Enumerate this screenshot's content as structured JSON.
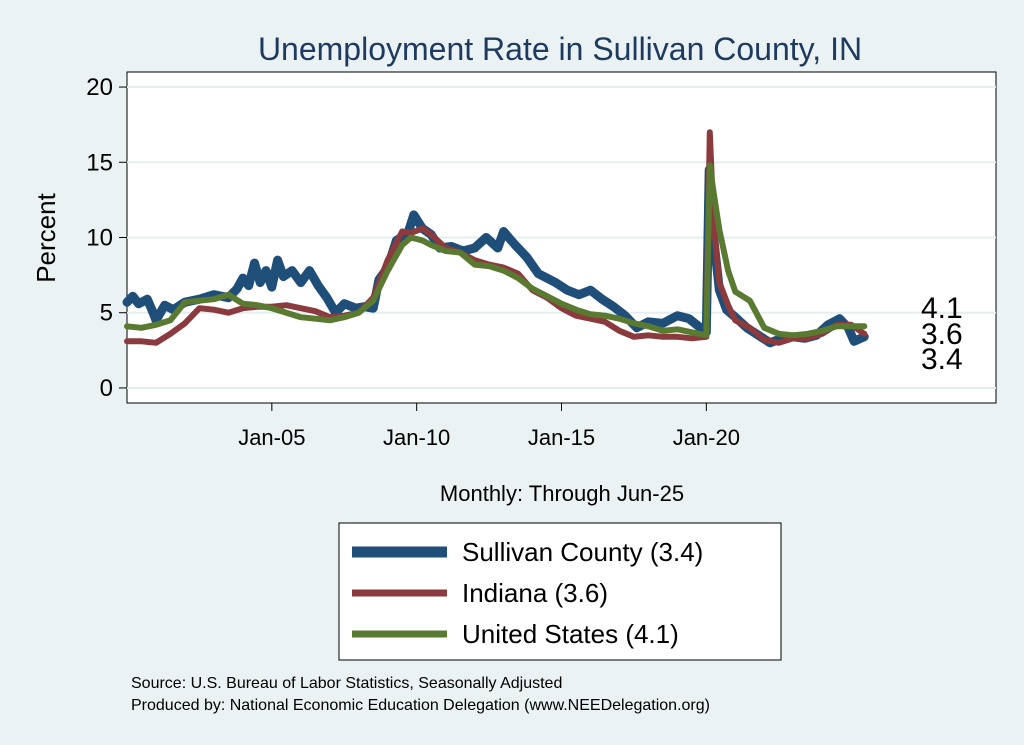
{
  "chart_data": {
    "type": "line",
    "title": "Unemployment Rate in Sullivan  County, IN",
    "xlabel": "Monthly: Through Jun-25",
    "ylabel": "Percent",
    "x_range": [
      2000.0,
      2030.0
    ],
    "ylim": [
      -1,
      21
    ],
    "y_ticks": [
      0,
      5,
      10,
      15,
      20
    ],
    "x_ticks": [
      {
        "label": "Jan-05",
        "value": 2005.0
      },
      {
        "label": "Jan-10",
        "value": 2010.0
      },
      {
        "label": "Jan-15",
        "value": 2015.0
      },
      {
        "label": "Jan-20",
        "value": 2020.0
      }
    ],
    "grid": true,
    "legend_position": "bottom",
    "series": [
      {
        "name": "Sullivan  County (3.4)",
        "color": "#1f4e79",
        "end_label": "3.4",
        "points": [
          [
            2000.0,
            5.7
          ],
          [
            2000.2,
            6.1
          ],
          [
            2000.4,
            5.6
          ],
          [
            2000.7,
            5.9
          ],
          [
            2000.9,
            5.0
          ],
          [
            2001.0,
            4.5
          ],
          [
            2001.3,
            5.5
          ],
          [
            2001.6,
            5.2
          ],
          [
            2002.0,
            5.7
          ],
          [
            2002.5,
            5.9
          ],
          [
            2003.0,
            6.2
          ],
          [
            2003.5,
            6.0
          ],
          [
            2003.8,
            6.6
          ],
          [
            2004.0,
            7.3
          ],
          [
            2004.2,
            6.8
          ],
          [
            2004.4,
            8.3
          ],
          [
            2004.6,
            7.0
          ],
          [
            2004.8,
            7.8
          ],
          [
            2005.0,
            6.7
          ],
          [
            2005.2,
            8.5
          ],
          [
            2005.4,
            7.4
          ],
          [
            2005.7,
            7.8
          ],
          [
            2006.0,
            7.0
          ],
          [
            2006.3,
            7.8
          ],
          [
            2006.6,
            6.8
          ],
          [
            2006.9,
            6.0
          ],
          [
            2007.2,
            5.0
          ],
          [
            2007.5,
            5.6
          ],
          [
            2007.9,
            5.3
          ],
          [
            2008.2,
            5.4
          ],
          [
            2008.5,
            5.3
          ],
          [
            2008.7,
            7.2
          ],
          [
            2009.0,
            8.0
          ],
          [
            2009.3,
            9.8
          ],
          [
            2009.7,
            10.3
          ],
          [
            2009.9,
            11.5
          ],
          [
            2010.2,
            10.6
          ],
          [
            2010.5,
            10.2
          ],
          [
            2010.8,
            9.3
          ],
          [
            2011.2,
            9.4
          ],
          [
            2011.6,
            9.1
          ],
          [
            2012.0,
            9.3
          ],
          [
            2012.4,
            10.0
          ],
          [
            2012.8,
            9.3
          ],
          [
            2013.0,
            10.4
          ],
          [
            2013.4,
            9.5
          ],
          [
            2013.8,
            8.7
          ],
          [
            2014.2,
            7.6
          ],
          [
            2014.8,
            7.0
          ],
          [
            2015.2,
            6.5
          ],
          [
            2015.6,
            6.2
          ],
          [
            2016.0,
            6.5
          ],
          [
            2016.4,
            5.9
          ],
          [
            2016.8,
            5.4
          ],
          [
            2017.2,
            4.8
          ],
          [
            2017.6,
            4.0
          ],
          [
            2018.0,
            4.4
          ],
          [
            2018.5,
            4.3
          ],
          [
            2019.0,
            4.8
          ],
          [
            2019.4,
            4.6
          ],
          [
            2019.8,
            4.0
          ],
          [
            2020.0,
            3.7
          ],
          [
            2020.1,
            14.5
          ],
          [
            2020.25,
            10.0
          ],
          [
            2020.45,
            6.5
          ],
          [
            2020.7,
            5.2
          ],
          [
            2021.0,
            4.7
          ],
          [
            2021.4,
            4.0
          ],
          [
            2021.8,
            3.5
          ],
          [
            2022.2,
            3.0
          ],
          [
            2022.6,
            3.3
          ],
          [
            2023.0,
            3.4
          ],
          [
            2023.4,
            3.3
          ],
          [
            2023.8,
            3.5
          ],
          [
            2024.2,
            4.2
          ],
          [
            2024.6,
            4.6
          ],
          [
            2024.9,
            4.0
          ],
          [
            2025.1,
            3.1
          ],
          [
            2025.45,
            3.4
          ]
        ]
      },
      {
        "name": "Indiana (3.6)",
        "color": "#8b3a3e",
        "end_label": "3.6",
        "points": [
          [
            2000.0,
            3.1
          ],
          [
            2000.5,
            3.1
          ],
          [
            2001.0,
            3.0
          ],
          [
            2001.5,
            3.6
          ],
          [
            2002.0,
            4.3
          ],
          [
            2002.5,
            5.3
          ],
          [
            2003.0,
            5.2
          ],
          [
            2003.5,
            5.0
          ],
          [
            2004.0,
            5.3
          ],
          [
            2004.5,
            5.4
          ],
          [
            2005.0,
            5.4
          ],
          [
            2005.5,
            5.5
          ],
          [
            2006.0,
            5.3
          ],
          [
            2006.5,
            5.1
          ],
          [
            2007.0,
            4.7
          ],
          [
            2007.5,
            4.8
          ],
          [
            2008.0,
            5.0
          ],
          [
            2008.5,
            6.0
          ],
          [
            2009.0,
            8.5
          ],
          [
            2009.5,
            10.4
          ],
          [
            2009.8,
            10.3
          ],
          [
            2010.2,
            10.6
          ],
          [
            2010.5,
            10.2
          ],
          [
            2011.0,
            9.3
          ],
          [
            2011.5,
            9.0
          ],
          [
            2012.0,
            8.5
          ],
          [
            2012.5,
            8.2
          ],
          [
            2013.0,
            8.0
          ],
          [
            2013.5,
            7.6
          ],
          [
            2014.0,
            6.5
          ],
          [
            2014.5,
            6.0
          ],
          [
            2015.0,
            5.3
          ],
          [
            2015.5,
            4.8
          ],
          [
            2016.0,
            4.6
          ],
          [
            2016.5,
            4.4
          ],
          [
            2017.0,
            3.8
          ],
          [
            2017.5,
            3.4
          ],
          [
            2018.0,
            3.5
          ],
          [
            2018.5,
            3.4
          ],
          [
            2019.0,
            3.4
          ],
          [
            2019.5,
            3.3
          ],
          [
            2020.0,
            3.4
          ],
          [
            2020.12,
            17.0
          ],
          [
            2020.25,
            11.0
          ],
          [
            2020.45,
            7.0
          ],
          [
            2020.75,
            5.5
          ],
          [
            2021.0,
            4.5
          ],
          [
            2021.5,
            4.0
          ],
          [
            2022.0,
            3.2
          ],
          [
            2022.5,
            3.0
          ],
          [
            2023.0,
            3.3
          ],
          [
            2023.5,
            3.3
          ],
          [
            2024.0,
            3.6
          ],
          [
            2024.5,
            4.2
          ],
          [
            2025.0,
            4.2
          ],
          [
            2025.45,
            3.6
          ]
        ]
      },
      {
        "name": "United States (4.1)",
        "color": "#5a7a32",
        "end_label": "4.1",
        "points": [
          [
            2000.0,
            4.1
          ],
          [
            2000.5,
            4.0
          ],
          [
            2001.0,
            4.2
          ],
          [
            2001.5,
            4.5
          ],
          [
            2002.0,
            5.7
          ],
          [
            2002.5,
            5.8
          ],
          [
            2003.0,
            5.9
          ],
          [
            2003.5,
            6.2
          ],
          [
            2004.0,
            5.6
          ],
          [
            2004.5,
            5.5
          ],
          [
            2005.0,
            5.3
          ],
          [
            2005.5,
            5.0
          ],
          [
            2006.0,
            4.7
          ],
          [
            2006.5,
            4.6
          ],
          [
            2007.0,
            4.5
          ],
          [
            2007.5,
            4.7
          ],
          [
            2008.0,
            5.0
          ],
          [
            2008.5,
            5.8
          ],
          [
            2009.0,
            7.8
          ],
          [
            2009.5,
            9.5
          ],
          [
            2009.8,
            10.0
          ],
          [
            2010.2,
            9.8
          ],
          [
            2010.5,
            9.5
          ],
          [
            2011.0,
            9.1
          ],
          [
            2011.5,
            9.0
          ],
          [
            2012.0,
            8.2
          ],
          [
            2012.5,
            8.1
          ],
          [
            2013.0,
            7.8
          ],
          [
            2013.5,
            7.3
          ],
          [
            2014.0,
            6.6
          ],
          [
            2014.5,
            6.1
          ],
          [
            2015.0,
            5.6
          ],
          [
            2015.5,
            5.2
          ],
          [
            2016.0,
            4.9
          ],
          [
            2016.5,
            4.8
          ],
          [
            2017.0,
            4.6
          ],
          [
            2017.5,
            4.3
          ],
          [
            2018.0,
            4.1
          ],
          [
            2018.5,
            3.8
          ],
          [
            2019.0,
            3.9
          ],
          [
            2019.5,
            3.7
          ],
          [
            2020.0,
            3.5
          ],
          [
            2020.12,
            14.8
          ],
          [
            2020.25,
            13.0
          ],
          [
            2020.45,
            10.5
          ],
          [
            2020.75,
            7.8
          ],
          [
            2021.0,
            6.4
          ],
          [
            2021.5,
            5.8
          ],
          [
            2022.0,
            4.0
          ],
          [
            2022.5,
            3.6
          ],
          [
            2023.0,
            3.5
          ],
          [
            2023.5,
            3.6
          ],
          [
            2024.0,
            3.8
          ],
          [
            2024.5,
            4.1
          ],
          [
            2025.0,
            4.1
          ],
          [
            2025.45,
            4.1
          ]
        ]
      }
    ]
  },
  "source_line": "Source: U.S. Bureau of Labor Statistics, Seasonally Adjusted",
  "produced_line": "Produced by: National Economic Education Delegation (www.NEEDelegation.org)"
}
